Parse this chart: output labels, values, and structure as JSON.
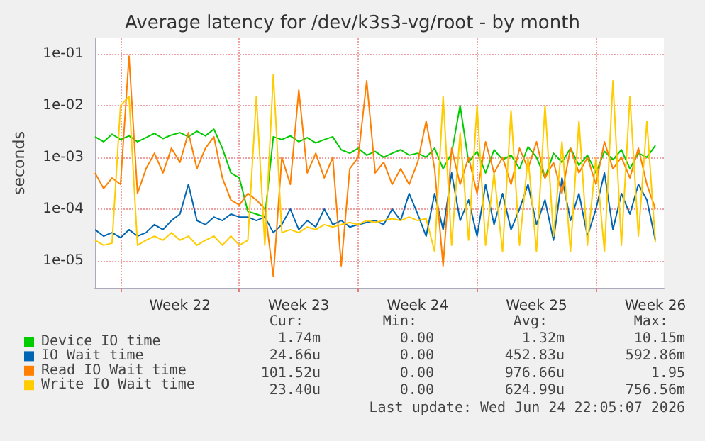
{
  "chart_data": {
    "type": "line",
    "title": "Average latency for /dev/k3s3-vg/root - by month",
    "ylabel": "seconds",
    "x": [
      "2026-05-23T12:00",
      "2026-05-24T00:00",
      "2026-05-24T12:00",
      "2026-05-25T00:00",
      "2026-05-25T12:00",
      "2026-05-26T00:00",
      "2026-05-26T12:00",
      "2026-05-27T00:00",
      "2026-05-27T12:00",
      "2026-05-28T00:00",
      "2026-05-28T12:00",
      "2026-05-29T00:00",
      "2026-05-29T12:00",
      "2026-05-30T00:00",
      "2026-05-30T12:00",
      "2026-05-31T00:00",
      "2026-05-31T12:00",
      "2026-06-01T00:00",
      "2026-06-01T12:00",
      "2026-06-02T00:00",
      "2026-06-02T12:00",
      "2026-06-03T00:00",
      "2026-06-03T12:00",
      "2026-06-04T00:00",
      "2026-06-04T12:00",
      "2026-06-05T00:00",
      "2026-06-05T12:00",
      "2026-06-06T00:00",
      "2026-06-06T12:00",
      "2026-06-07T00:00",
      "2026-06-07T12:00",
      "2026-06-08T00:00",
      "2026-06-08T12:00",
      "2026-06-09T00:00",
      "2026-06-09T12:00",
      "2026-06-10T00:00",
      "2026-06-10T12:00",
      "2026-06-11T00:00",
      "2026-06-11T12:00",
      "2026-06-12T00:00",
      "2026-06-12T12:00",
      "2026-06-13T00:00",
      "2026-06-13T12:00",
      "2026-06-14T00:00",
      "2026-06-14T12:00",
      "2026-06-15T00:00",
      "2026-06-15T12:00",
      "2026-06-16T00:00",
      "2026-06-16T12:00",
      "2026-06-17T00:00",
      "2026-06-17T12:00",
      "2026-06-18T00:00",
      "2026-06-18T12:00",
      "2026-06-19T00:00",
      "2026-06-19T12:00",
      "2026-06-20T00:00",
      "2026-06-20T12:00",
      "2026-06-21T00:00",
      "2026-06-21T12:00",
      "2026-06-22T00:00",
      "2026-06-22T12:00",
      "2026-06-23T00:00",
      "2026-06-23T12:00",
      "2026-06-24T00:00",
      "2026-06-24T12:00",
      "2026-06-25T00:00",
      "2026-06-25T12:00"
    ],
    "series": [
      {
        "name": "Device IO time",
        "color": "#00cc00",
        "values": [
          0.0025,
          0.002,
          0.0028,
          0.0022,
          0.0026,
          0.002,
          0.0024,
          0.0029,
          0.0023,
          0.0027,
          0.003,
          0.0025,
          0.0032,
          0.0026,
          0.0035,
          0.0015,
          0.0005,
          0.0004,
          9e-05,
          8e-05,
          7e-05,
          0.0025,
          0.0022,
          0.0026,
          0.002,
          0.0024,
          0.0019,
          0.0022,
          0.0025,
          0.0014,
          0.0012,
          0.0015,
          0.0011,
          0.0013,
          0.001,
          0.0012,
          0.0014,
          0.0011,
          0.0012,
          0.001,
          0.0015,
          0.0006,
          0.0012,
          0.01,
          0.0008,
          0.0013,
          0.0005,
          0.0014,
          0.0009,
          0.0011,
          0.0006,
          0.0016,
          0.001,
          0.0004,
          0.0012,
          0.0008,
          0.0015,
          0.0007,
          0.0011,
          0.0005,
          0.0013,
          0.0009,
          0.0014,
          0.0006,
          0.0012,
          0.001,
          0.0017
        ]
      },
      {
        "name": "IO Wait time",
        "color": "#0066b3",
        "values": [
          4e-05,
          3e-05,
          3.5e-05,
          2.8e-05,
          4e-05,
          3e-05,
          3.5e-05,
          5e-05,
          4e-05,
          6e-05,
          8e-05,
          0.0003,
          6e-05,
          5e-05,
          7e-05,
          6e-05,
          8e-05,
          7e-05,
          7e-05,
          6e-05,
          7e-05,
          3.5e-05,
          5e-05,
          0.0001,
          4e-05,
          6e-05,
          4.5e-05,
          0.0001,
          5e-05,
          6e-05,
          4.5e-05,
          5e-05,
          5.5e-05,
          6e-05,
          5e-05,
          0.0001,
          6e-05,
          0.0002,
          8e-05,
          3e-05,
          0.0002,
          4e-05,
          0.0005,
          6e-05,
          0.00015,
          3e-05,
          0.0003,
          5e-05,
          0.0002,
          4e-05,
          0.0001,
          0.0003,
          5e-05,
          0.00015,
          2.5e-05,
          0.0004,
          6e-05,
          0.0002,
          3e-05,
          0.0001,
          0.0005,
          4e-05,
          0.0002,
          8e-05,
          0.0003,
          0.00015,
          2.5e-05
        ]
      },
      {
        "name": "Read IO Wait time",
        "color": "#ff8000",
        "values": [
          0.0005,
          0.00025,
          0.0004,
          0.0003,
          0.09,
          0.0002,
          0.0006,
          0.0012,
          0.0005,
          0.0015,
          0.0008,
          0.003,
          0.0006,
          0.0015,
          0.0025,
          0.0004,
          0.00015,
          0.00012,
          0.0002,
          0.00015,
          0.0001,
          5e-06,
          0.001,
          0.0003,
          0.02,
          0.0005,
          0.0012,
          0.0004,
          0.001,
          8e-06,
          0.0006,
          0.001,
          0.03,
          0.0005,
          0.0008,
          0.0003,
          0.0006,
          0.0003,
          0.0008,
          0.005,
          0.0006,
          8e-06,
          0.0015,
          0.0003,
          0.001,
          0.0002,
          0.002,
          0.0005,
          0.001,
          0.0003,
          0.0015,
          0.0006,
          0.002,
          0.0004,
          0.0008,
          0.0002,
          0.0015,
          0.0005,
          0.001,
          0.0003,
          0.002,
          0.0006,
          0.001,
          0.0004,
          0.0015,
          0.0003,
          0.0001
        ]
      },
      {
        "name": "Write IO Wait time",
        "color": "#ffcc00",
        "values": [
          2.5e-05,
          2e-05,
          2.2e-05,
          0.01,
          0.015,
          2e-05,
          2.5e-05,
          3e-05,
          2.5e-05,
          3.5e-05,
          2.5e-05,
          3e-05,
          2e-05,
          2.5e-05,
          3e-05,
          2e-05,
          3e-05,
          2e-05,
          2.5e-05,
          0.015,
          2e-05,
          0.04,
          3.5e-05,
          4e-05,
          3.5e-05,
          4.5e-05,
          4e-05,
          5e-05,
          4.5e-05,
          5e-05,
          5.5e-05,
          5e-05,
          6e-05,
          5.5e-05,
          6e-05,
          6.5e-05,
          6e-05,
          7e-05,
          6e-05,
          6.5e-05,
          1.5e-05,
          0.015,
          2e-05,
          0.003,
          2.5e-05,
          0.01,
          2e-05,
          0.0005,
          1.5e-05,
          0.008,
          2e-05,
          0.001,
          1.5e-05,
          0.01,
          3e-05,
          0.002,
          1.5e-05,
          0.005,
          2e-05,
          0.001,
          1.5e-05,
          0.03,
          2e-05,
          0.015,
          3e-05,
          0.005,
          2.3e-05
        ]
      }
    ],
    "xlim": [
      "2026-05-23T12:00",
      "2026-06-26T00:00"
    ],
    "xticks": [
      {
        "value": "2026-05-25T00:00",
        "label": null
      },
      {
        "value": "2026-05-28T12:00",
        "label": "Week 22"
      },
      {
        "value": "2026-06-01T00:00",
        "label": null
      },
      {
        "value": "2026-06-04T12:00",
        "label": "Week 23"
      },
      {
        "value": "2026-06-08T00:00",
        "label": null
      },
      {
        "value": "2026-06-11T12:00",
        "label": "Week 24"
      },
      {
        "value": "2026-06-15T00:00",
        "label": null
      },
      {
        "value": "2026-06-18T12:00",
        "label": "Week 25"
      },
      {
        "value": "2026-06-22T00:00",
        "label": null
      },
      {
        "value": "2026-06-25T12:00",
        "label": "Week 26"
      }
    ],
    "ylim": [
      3e-06,
      0.2
    ],
    "yticks": [
      {
        "value": 1e-05,
        "label": "1e-05"
      },
      {
        "value": 0.0001,
        "label": "1e-04"
      },
      {
        "value": 0.001,
        "label": "1e-03"
      },
      {
        "value": 0.01,
        "label": "1e-02"
      },
      {
        "value": 0.1,
        "label": "1e-01"
      }
    ],
    "log": "y",
    "grid": true,
    "legend": "bottom left",
    "line_style": "solid",
    "annotations": [
      "Cur:",
      "Min:",
      "Avg:",
      "Max:",
      "1.74m",
      "0.00",
      "1.32m",
      "10.15m",
      "24.66u",
      "0.00",
      "452.83u",
      "592.86m",
      "101.52u",
      "0.00",
      "976.66u",
      "1.95",
      "23.40u",
      "0.00",
      "624.99u",
      "756.56m",
      "Last update: Wed Jun 24 22:05:07 2026"
    ]
  }
}
